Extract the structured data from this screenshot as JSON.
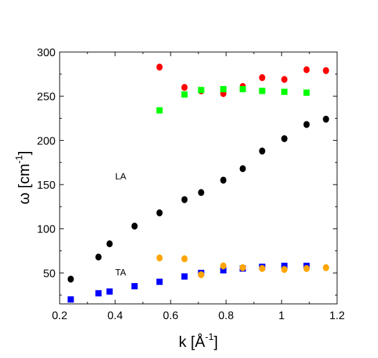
{
  "chart_data": {
    "type": "scatter",
    "title": "",
    "xlabel": "k [Å",
    "xlabel_sup": "-1",
    "xlabel_close": "]",
    "ylabel": "ω [cm",
    "ylabel_sup": "-1",
    "ylabel_close": "]",
    "xlim": [
      0.2,
      1.2
    ],
    "ylim": [
      15,
      300
    ],
    "xticks": [
      "0.2",
      "0.4",
      "0.6",
      "0.8",
      "1",
      "1.2"
    ],
    "xtick_values": [
      0.2,
      0.4,
      0.6,
      0.8,
      1.0,
      1.2
    ],
    "yticks": [
      "50",
      "100",
      "150",
      "200",
      "250",
      "300"
    ],
    "ytick_values": [
      50,
      100,
      150,
      200,
      250,
      300
    ],
    "grid": false,
    "annotations": [
      {
        "text": "LA",
        "x": 0.42,
        "y": 156
      },
      {
        "text": "TA",
        "x": 0.42,
        "y": 47
      }
    ],
    "series": [
      {
        "color": "#000000",
        "marker": "circle",
        "x": [
          0.24,
          0.34,
          0.38,
          0.47,
          0.56,
          0.65,
          0.71,
          0.79,
          0.86,
          0.93,
          1.01,
          1.09,
          1.16
        ],
        "y": [
          43,
          68,
          83,
          103,
          118,
          133,
          141,
          155,
          168,
          188,
          202,
          218,
          224
        ]
      },
      {
        "color": "#ff0000",
        "marker": "circle",
        "x": [
          0.56,
          0.65,
          0.71,
          0.79,
          0.86,
          0.93,
          1.01,
          1.09,
          1.16
        ],
        "y": [
          283,
          260,
          256,
          253,
          261,
          271,
          269,
          280,
          279
        ]
      },
      {
        "color": "#00ff00",
        "marker": "square",
        "x": [
          0.56,
          0.65,
          0.71,
          0.79,
          0.86,
          0.93,
          1.01,
          1.09
        ],
        "y": [
          234,
          252,
          257,
          258,
          258,
          256,
          255,
          254
        ]
      },
      {
        "color": "#0000ff",
        "marker": "square",
        "x": [
          0.24,
          0.34,
          0.38,
          0.47,
          0.56,
          0.65,
          0.71,
          0.79,
          0.86,
          0.93,
          1.01,
          1.09
        ],
        "y": [
          20,
          27,
          29,
          35,
          40,
          46,
          50,
          53,
          55,
          57,
          58,
          58
        ]
      },
      {
        "color": "#ffa500",
        "marker": "circle",
        "x": [
          0.56,
          0.65,
          0.71,
          0.79,
          0.86,
          0.93,
          1.01,
          1.09,
          1.16
        ],
        "y": [
          67,
          66,
          48,
          58,
          56,
          55,
          54,
          55,
          56
        ]
      }
    ]
  }
}
